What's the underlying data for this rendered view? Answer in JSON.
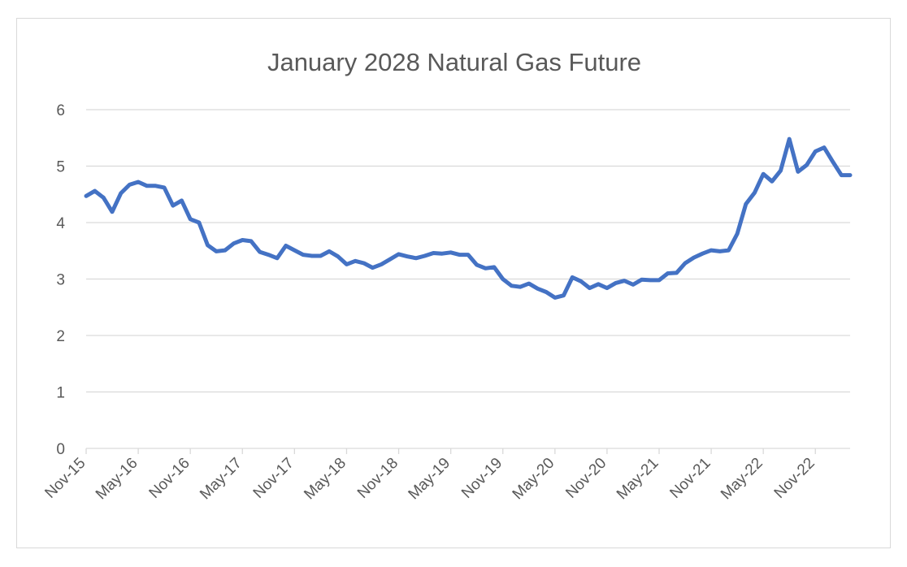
{
  "chart_data": {
    "type": "line",
    "title": "January 2028 Natural Gas Future",
    "xlabel": "",
    "ylabel": "",
    "ylim": [
      0,
      6
    ],
    "yticks": [
      0,
      1,
      2,
      3,
      4,
      5,
      6
    ],
    "xlim": [
      "2015-11",
      "2023-03"
    ],
    "xtick_labels": [
      "Nov-15",
      "May-16",
      "Nov-16",
      "May-17",
      "Nov-17",
      "May-18",
      "Nov-18",
      "May-19",
      "Nov-19",
      "May-20",
      "Nov-20",
      "May-21",
      "Nov-21",
      "May-22",
      "Nov-22"
    ],
    "grid": true,
    "legend": "none",
    "line_color": "#4472c4",
    "series": [
      {
        "x": [
          "2015-11",
          "2015-12",
          "2016-01",
          "2016-02",
          "2016-03",
          "2016-04",
          "2016-05",
          "2016-06",
          "2016-07",
          "2016-08",
          "2016-09",
          "2016-10",
          "2016-11",
          "2016-12",
          "2017-01",
          "2017-02",
          "2017-03",
          "2017-04",
          "2017-05",
          "2017-06",
          "2017-07",
          "2017-08",
          "2017-09",
          "2017-10",
          "2017-11",
          "2017-12",
          "2018-01",
          "2018-02",
          "2018-03",
          "2018-04",
          "2018-05",
          "2018-06",
          "2018-07",
          "2018-08",
          "2018-09",
          "2018-10",
          "2018-11",
          "2018-12",
          "2019-01",
          "2019-02",
          "2019-03",
          "2019-04",
          "2019-05",
          "2019-06",
          "2019-07",
          "2019-08",
          "2019-09",
          "2019-10",
          "2019-11",
          "2019-12",
          "2020-01",
          "2020-02",
          "2020-03",
          "2020-04",
          "2020-05",
          "2020-06",
          "2020-07",
          "2020-08",
          "2020-09",
          "2020-10",
          "2020-11",
          "2020-12",
          "2021-01",
          "2021-02",
          "2021-03",
          "2021-04",
          "2021-05",
          "2021-06",
          "2021-07",
          "2021-08",
          "2021-09",
          "2021-10",
          "2021-11",
          "2021-12",
          "2022-01",
          "2022-02",
          "2022-03",
          "2022-04",
          "2022-05",
          "2022-06",
          "2022-07",
          "2022-08",
          "2022-09",
          "2022-10",
          "2022-11",
          "2022-12",
          "2023-01",
          "2023-02",
          "2023-03"
        ],
        "values": [
          4.47,
          4.56,
          4.44,
          4.19,
          4.52,
          4.67,
          4.72,
          4.65,
          4.65,
          4.62,
          4.3,
          4.39,
          4.06,
          4.0,
          3.6,
          3.49,
          3.51,
          3.63,
          3.69,
          3.67,
          3.48,
          3.43,
          3.37,
          3.59,
          3.51,
          3.43,
          3.41,
          3.41,
          3.49,
          3.4,
          3.26,
          3.32,
          3.28,
          3.2,
          3.26,
          3.35,
          3.44,
          3.4,
          3.37,
          3.41,
          3.46,
          3.45,
          3.47,
          3.43,
          3.43,
          3.25,
          3.19,
          3.21,
          3.0,
          2.88,
          2.86,
          2.92,
          2.83,
          2.77,
          2.67,
          2.71,
          3.03,
          2.96,
          2.84,
          2.91,
          2.84,
          2.93,
          2.97,
          2.9,
          2.99,
          2.98,
          2.98,
          3.1,
          3.11,
          3.28,
          3.38,
          3.45,
          3.51,
          3.49,
          3.51,
          3.8,
          4.33,
          4.53,
          4.86,
          4.73,
          4.92,
          5.48,
          4.9,
          5.02,
          5.26,
          5.33,
          5.08,
          4.84,
          4.84
        ]
      }
    ]
  }
}
